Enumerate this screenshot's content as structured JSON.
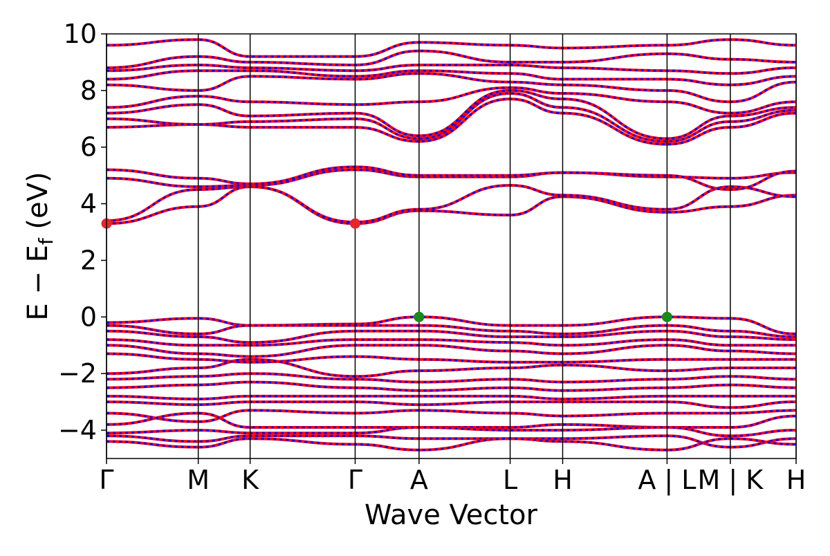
{
  "chart_data": {
    "type": "line",
    "title": "",
    "xlabel": "Wave Vector",
    "ylabel": "E − E_f (eV)",
    "ylabel_parts": {
      "main": "E − E",
      "sub": "f",
      "unit": " (eV)"
    },
    "ylim": [
      -5,
      10
    ],
    "yticks": [
      -4,
      -2,
      0,
      2,
      4,
      6,
      8,
      10
    ],
    "ytick_labels": [
      "−4",
      "−2",
      "0",
      "2",
      "4",
      "6",
      "8",
      "10"
    ],
    "xlim": [
      0,
      10.9
    ],
    "kpoint_positions": [
      0,
      1.45,
      2.27,
      3.93,
      4.94,
      6.38,
      7.21,
      8.86,
      9.86,
      10.9
    ],
    "kpoint_labels": [
      "Γ",
      "M",
      "K",
      "Γ",
      "A",
      "L",
      "H",
      "A | L",
      "M | K",
      "H"
    ],
    "grid": false,
    "band_colors": {
      "spin_up": "#ff0000",
      "spin_down": "#0000ff"
    },
    "special_points": [
      {
        "name": "CBM",
        "x": 0.0,
        "y": 3.3,
        "color": "#e8262a"
      },
      {
        "name": "CBM",
        "x": 3.93,
        "y": 3.3,
        "color": "#e8262a"
      },
      {
        "name": "VBM",
        "x": 4.94,
        "y": 0.0,
        "color": "#1a8a1a"
      },
      {
        "name": "VBM",
        "x": 8.86,
        "y": 0.0,
        "color": "#1a8a1a"
      }
    ],
    "series": [
      {
        "values": [
          3.3,
          3.9,
          4.6,
          3.3,
          3.75,
          3.6,
          4.25,
          3.7,
          3.9,
          4.3
        ]
      },
      {
        "values": [
          3.4,
          4.5,
          4.6,
          3.35,
          3.8,
          4.65,
          4.3,
          3.8,
          4.6,
          4.25
        ]
      },
      {
        "values": [
          4.9,
          4.6,
          4.65,
          5.2,
          4.95,
          4.95,
          5.1,
          4.95,
          4.9,
          5.1
        ]
      },
      {
        "values": [
          5.2,
          4.9,
          4.7,
          5.3,
          5.0,
          5.0,
          5.1,
          5.0,
          4.5,
          5.15
        ]
      },
      {
        "values": [
          6.7,
          6.8,
          6.7,
          6.7,
          6.2,
          7.7,
          7.2,
          6.1,
          6.7,
          7.2
        ]
      },
      {
        "values": [
          7.0,
          6.8,
          6.9,
          7.0,
          6.3,
          7.9,
          7.4,
          6.2,
          6.9,
          7.3
        ]
      },
      {
        "values": [
          7.2,
          7.5,
          7.1,
          7.2,
          6.4,
          8.0,
          7.7,
          6.3,
          7.1,
          7.4
        ]
      },
      {
        "values": [
          7.4,
          7.8,
          7.6,
          7.5,
          7.6,
          8.1,
          7.9,
          7.6,
          7.2,
          7.6
        ]
      },
      {
        "values": [
          8.2,
          8.0,
          8.5,
          8.4,
          8.6,
          8.3,
          8.2,
          8.0,
          7.6,
          8.3
        ]
      },
      {
        "values": [
          8.4,
          8.7,
          8.7,
          8.5,
          8.7,
          8.6,
          8.4,
          8.4,
          8.2,
          8.5
        ]
      },
      {
        "values": [
          8.7,
          8.9,
          8.8,
          8.7,
          8.9,
          8.9,
          8.8,
          8.7,
          8.6,
          8.8
        ]
      },
      {
        "values": [
          8.8,
          9.2,
          9.0,
          8.9,
          9.4,
          9.0,
          9.0,
          9.3,
          9.1,
          9.0
        ]
      },
      {
        "values": [
          9.6,
          9.8,
          9.2,
          9.2,
          9.7,
          9.6,
          9.5,
          9.6,
          9.8,
          9.6
        ]
      },
      {
        "values": [
          -0.2,
          -0.05,
          -0.3,
          -0.25,
          0.0,
          -0.3,
          -0.3,
          0.0,
          -0.05,
          -0.6
        ]
      },
      {
        "values": [
          -0.3,
          -0.6,
          -0.3,
          -0.3,
          -0.3,
          -0.5,
          -0.6,
          -0.3,
          -0.5,
          -0.7
        ]
      },
      {
        "values": [
          -0.5,
          -0.7,
          -0.9,
          -0.5,
          -0.5,
          -0.7,
          -0.7,
          -0.5,
          -0.7,
          -0.8
        ]
      },
      {
        "values": [
          -0.8,
          -1.0,
          -1.0,
          -0.8,
          -0.8,
          -0.9,
          -1.0,
          -0.8,
          -1.0,
          -1.0
        ]
      },
      {
        "values": [
          -1.0,
          -1.3,
          -1.4,
          -1.0,
          -1.0,
          -1.2,
          -1.3,
          -1.0,
          -1.2,
          -1.3
        ]
      },
      {
        "values": [
          -1.3,
          -1.5,
          -1.6,
          -1.4,
          -1.5,
          -1.6,
          -1.6,
          -1.5,
          -1.5,
          -1.5
        ]
      },
      {
        "values": [
          -2.0,
          -1.8,
          -1.5,
          -2.1,
          -1.9,
          -1.8,
          -1.7,
          -1.9,
          -1.8,
          -1.8
        ]
      },
      {
        "values": [
          -2.2,
          -2.1,
          -2.0,
          -2.2,
          -2.3,
          -2.2,
          -2.3,
          -2.2,
          -2.1,
          -2.2
        ]
      },
      {
        "values": [
          -2.5,
          -2.4,
          -2.3,
          -2.5,
          -2.6,
          -2.5,
          -2.6,
          -2.5,
          -2.4,
          -2.5
        ]
      },
      {
        "values": [
          -2.8,
          -2.9,
          -2.8,
          -2.8,
          -2.8,
          -2.8,
          -2.9,
          -2.8,
          -2.8,
          -2.8
        ]
      },
      {
        "values": [
          -3.0,
          -3.1,
          -3.0,
          -3.0,
          -3.1,
          -3.0,
          -3.0,
          -3.0,
          -3.2,
          -3.0
        ]
      },
      {
        "values": [
          -3.4,
          -3.7,
          -3.3,
          -3.4,
          -3.3,
          -3.4,
          -3.5,
          -3.4,
          -3.4,
          -3.3
        ]
      },
      {
        "values": [
          -3.8,
          -3.4,
          -3.9,
          -3.9,
          -3.9,
          -3.9,
          -3.8,
          -3.9,
          -3.9,
          -3.5
        ]
      },
      {
        "values": [
          -4.1,
          -4.0,
          -4.1,
          -4.1,
          -3.9,
          -4.0,
          -4.0,
          -3.9,
          -4.2,
          -4.0
        ]
      },
      {
        "values": [
          -4.2,
          -4.4,
          -4.2,
          -4.2,
          -4.3,
          -4.3,
          -4.3,
          -4.2,
          -4.6,
          -4.3
        ]
      },
      {
        "values": [
          -4.4,
          -4.6,
          -4.3,
          -4.5,
          -4.7,
          -4.3,
          -4.4,
          -4.7,
          -4.3,
          -4.5
        ]
      }
    ]
  }
}
